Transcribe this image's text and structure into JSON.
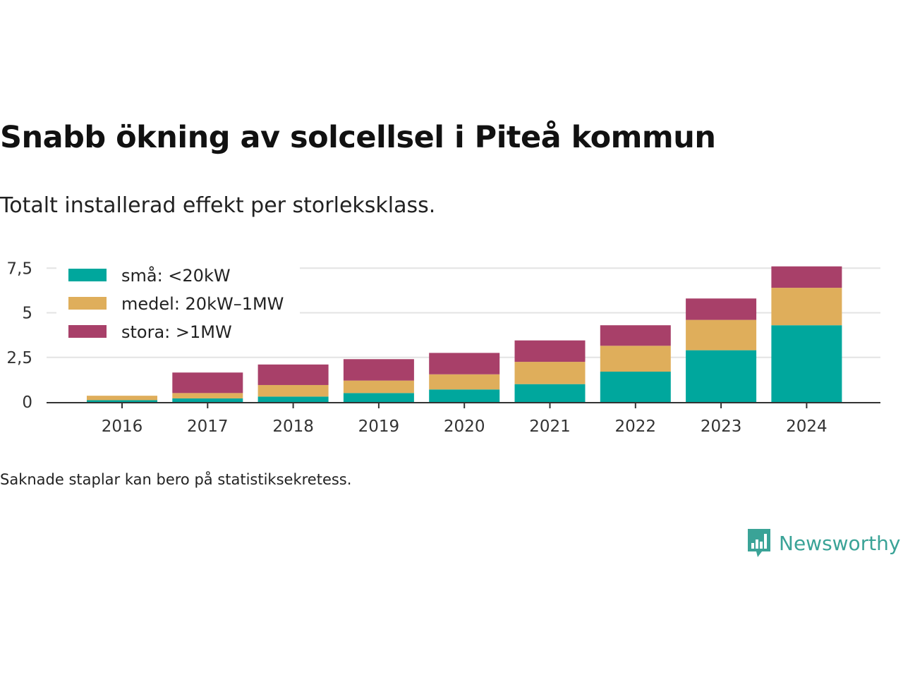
{
  "title": "Snabb ökning av solcellsel i Piteå kommun",
  "subtitle": "Totalt installerad effekt per storleksklass.",
  "note": "Saknade staplar kan bero på statistiksekretess.",
  "brand": {
    "name": "Newsworthy",
    "icon": "newsworthy-logo-icon",
    "color": "#3aa397"
  },
  "chart_data": {
    "type": "bar",
    "stacked": true,
    "categories": [
      "2016",
      "2017",
      "2018",
      "2019",
      "2020",
      "2021",
      "2022",
      "2023",
      "2024"
    ],
    "series": [
      {
        "name": "små: <20kW",
        "color": "#00a79d",
        "values": [
          0.1,
          0.2,
          0.3,
          0.5,
          0.7,
          1.0,
          1.7,
          2.9,
          4.3
        ]
      },
      {
        "name": "medel: 20kW–1MW",
        "color": "#dfae5b",
        "values": [
          0.25,
          0.3,
          0.65,
          0.7,
          0.85,
          1.25,
          1.45,
          1.7,
          2.1
        ]
      },
      {
        "name": "stora: >1MW",
        "color": "#a84069",
        "values": [
          0.0,
          1.15,
          1.15,
          1.2,
          1.2,
          1.2,
          1.15,
          1.2,
          1.2
        ]
      }
    ],
    "yticks": [
      {
        "value": 0,
        "label": "0"
      },
      {
        "value": 2.5,
        "label": "2,5"
      },
      {
        "value": 5,
        "label": "5"
      },
      {
        "value": 7.5,
        "label": "7,5"
      }
    ],
    "ylim": [
      0,
      7.6
    ],
    "grid": true,
    "legend_position": "top-left"
  }
}
